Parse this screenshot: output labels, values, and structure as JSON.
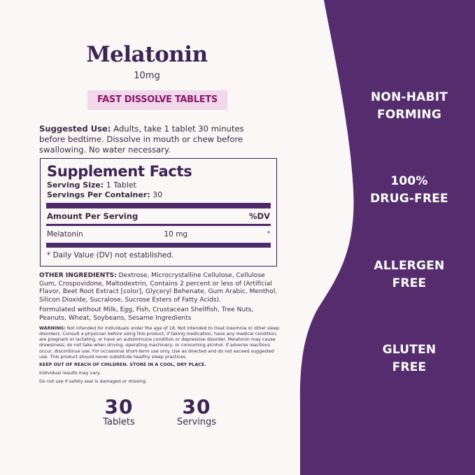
{
  "colors": {
    "brand_purple": "#552d6e",
    "badge_bg": "#f1d7ea",
    "badge_text": "#8a1a6a",
    "background": "#faf7f6"
  },
  "product": {
    "name": "Melatonin",
    "dose": "10mg",
    "badge": "FAST DISSOLVE TABLETS"
  },
  "suggested_use": {
    "label": "Suggested Use:",
    "text": " Adults, take 1 tablet 30 minutes before bedtime. Dissolve in mouth or chew before swallowing. No water necessary."
  },
  "supplement_facts": {
    "title": "Supplement Facts",
    "serving_size_label": "Serving Size:",
    "serving_size": " 1 Tablet",
    "servings_label": "Servings Per Container:",
    "servings": " 30",
    "amount_header": "Amount Per Serving",
    "dv_header": "%DV",
    "rows": [
      {
        "name": "Melatonin",
        "amount": "10 mg",
        "dv": "*"
      }
    ],
    "footnote": "* Daily Value (DV) not established."
  },
  "other_ingredients": {
    "label": "OTHER INGREDIENTS:",
    "text": " Dextrose, Microcrystalline Cellulose, Cellulose Gum, Crospovidone, Maltodextrin, Contains 2 percent or less of (Artificial Flavor, Beet Root Extract [color], Glyceryl Behenate, Gum Arabic, Menthol, Silicon Dioxide, Sucralose, Sucrose Esters of Fatty Acids)."
  },
  "allergen_statement": "Formulated without Milk, Egg, Fish, Crustacean Shellfish, Tree Nuts, Peanuts, Wheat, Soybeans, Sesame Ingredients",
  "warning": {
    "label": "WARNING:",
    "text": " Not intended for individuals under the age of 18. Not intended to treat insomnia or other sleep disorders. Consult a physician before using this product, if taking medication, have any medical condition, are pregnant or lactating, or have an autoimmune condition or depressive disorder. Melatonin may cause drowsiness; do not take when driving, operating machinery, or consuming alcohol. If adverse reactions occur, discontinue use. For occasional short-term use only. Use as directed and do not exceed suggested use. This product should never substitute healthy sleep practices."
  },
  "keep_out": "KEEP OUT OF REACH OF CHILDREN. STORE IN A COOL, DRY PLACE.",
  "results_note": "Individual results may vary.",
  "seal_note": "Do not use if safety seal is damaged or missing.",
  "stats": [
    {
      "number": "30",
      "label": "Tablets"
    },
    {
      "number": "30",
      "label": "Servings"
    }
  ],
  "claims": [
    {
      "line1": "NON-HABIT",
      "line2": "FORMING"
    },
    {
      "line1": "100%",
      "line2": "DRUG-FREE"
    },
    {
      "line1": "ALLERGEN",
      "line2": "FREE"
    },
    {
      "line1": "GLUTEN",
      "line2": "FREE"
    }
  ]
}
